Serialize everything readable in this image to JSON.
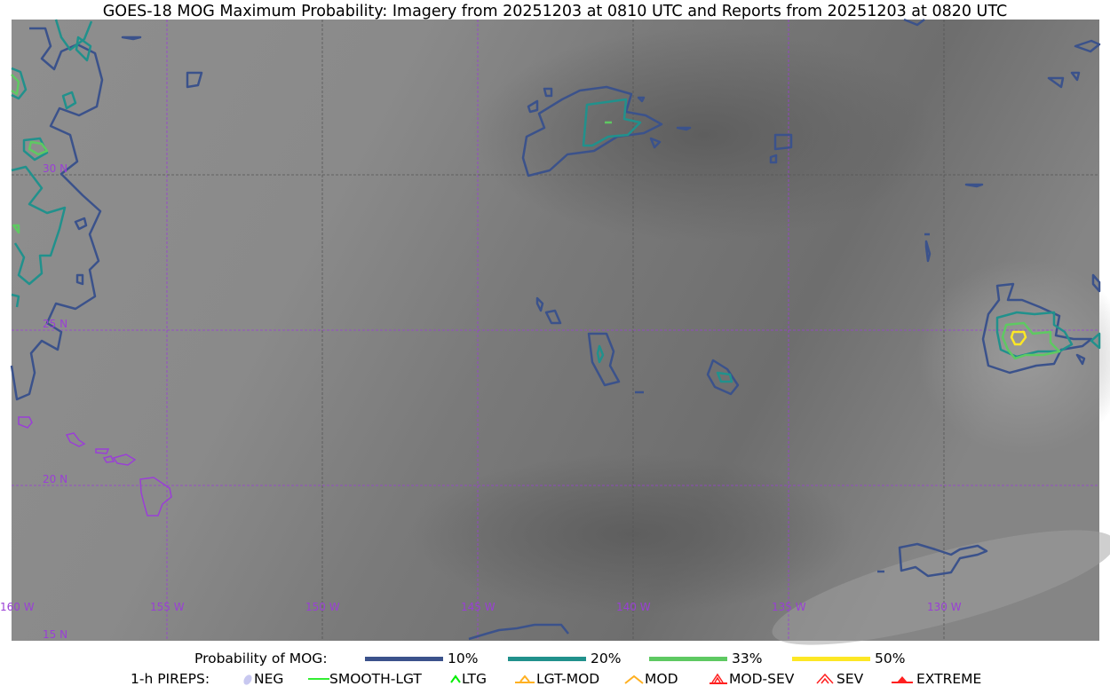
{
  "title": "GOES-18 MOG Maximum Probability: Imagery from 20251203 at 0810 UTC and Reports from 20251203 at 0820 UTC",
  "map": {
    "longitude_labels": [
      "160 W",
      "155 W",
      "150 W",
      "145 W",
      "140 W",
      "135 W",
      "130 W"
    ],
    "latitude_labels": [
      "30 N",
      "25 N",
      "20 N",
      "15 N"
    ],
    "gridline_color": "#9a3fd6",
    "coastline_color": "#9a3fd6"
  },
  "legend": {
    "probability_label": "Probability of MOG:",
    "levels": [
      {
        "label": "10%",
        "color": "#3b528b"
      },
      {
        "label": "20%",
        "color": "#21918c"
      },
      {
        "label": "33%",
        "color": "#5ec962"
      },
      {
        "label": "50%",
        "color": "#fde725"
      }
    ],
    "pireps_label": "1-h PIREPS:",
    "pireps": [
      {
        "label": "NEG",
        "icon": "neg-icon",
        "color": "#c8c8f0"
      },
      {
        "label": "SMOOTH-LGT",
        "icon": "line-icon",
        "color": "#33ee33"
      },
      {
        "label": "LTG",
        "icon": "caret-icon",
        "color": "#00ee00"
      },
      {
        "label": "LGT-MOD",
        "icon": "caret-bar-icon",
        "color": "#ffb020"
      },
      {
        "label": "MOD",
        "icon": "caret-icon",
        "color": "#ffb020"
      },
      {
        "label": "MOD-SEV",
        "icon": "double-caret-bar-icon",
        "color": "#ff2020"
      },
      {
        "label": "SEV",
        "icon": "double-caret-icon",
        "color": "#ff2020"
      },
      {
        "label": "EXTREME",
        "icon": "filled-triangle-icon",
        "color": "#ff2020"
      }
    ]
  }
}
